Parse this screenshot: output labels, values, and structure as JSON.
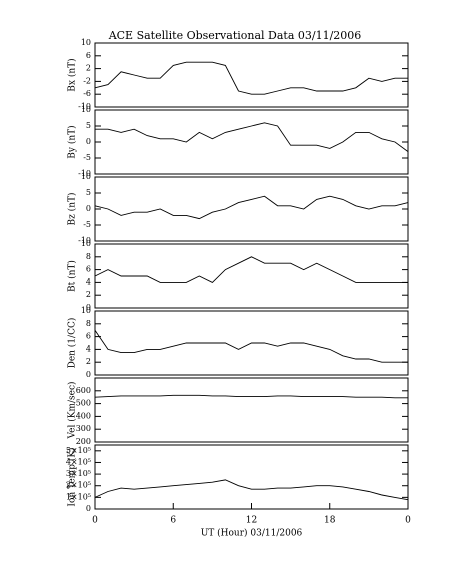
{
  "chart_data": [
    {
      "type": "line",
      "title": "ACE Satellite Observational Data   03/11/2006",
      "ylabel": "Bx (nT)",
      "x": [
        0,
        1,
        2,
        3,
        4,
        5,
        6,
        7,
        8,
        9,
        10,
        11,
        12,
        13,
        14,
        15,
        16,
        17,
        18,
        19,
        20,
        21,
        22,
        23,
        24
      ],
      "values": [
        -4,
        -3,
        1,
        0,
        -1,
        -1,
        3,
        4,
        4,
        4,
        3,
        -5,
        -6,
        -6,
        -5,
        -4,
        -4,
        -5,
        -5,
        -5,
        -4,
        -1,
        -2,
        -1,
        -1
      ],
      "ylim": [
        -10,
        10
      ],
      "yticks": [
        -10,
        -6,
        -2,
        2,
        6,
        10
      ],
      "xlim": [
        0,
        24
      ]
    },
    {
      "type": "line",
      "ylabel": "By (nT)",
      "x": [
        0,
        1,
        2,
        3,
        4,
        5,
        6,
        7,
        8,
        9,
        10,
        11,
        12,
        13,
        14,
        15,
        16,
        17,
        18,
        19,
        20,
        21,
        22,
        23,
        24
      ],
      "values": [
        4,
        4,
        3,
        4,
        2,
        1,
        1,
        0,
        3,
        1,
        3,
        4,
        5,
        6,
        5,
        -1,
        -1,
        -1,
        -2,
        0,
        3,
        3,
        1,
        0,
        -3
      ],
      "ylim": [
        -10,
        10
      ],
      "yticks": [
        -10,
        -5,
        0,
        5,
        10
      ],
      "xlim": [
        0,
        24
      ]
    },
    {
      "type": "line",
      "ylabel": "Bz (nT)",
      "x": [
        0,
        1,
        2,
        3,
        4,
        5,
        6,
        7,
        8,
        9,
        10,
        11,
        12,
        13,
        14,
        15,
        16,
        17,
        18,
        19,
        20,
        21,
        22,
        23,
        24
      ],
      "values": [
        1,
        0,
        -2,
        -1,
        -1,
        0,
        -2,
        -2,
        -3,
        -1,
        0,
        2,
        3,
        4,
        1,
        1,
        0,
        3,
        4,
        3,
        1,
        0,
        1,
        1,
        2
      ],
      "ylim": [
        -10,
        10
      ],
      "yticks": [
        -10,
        -5,
        0,
        5,
        10
      ],
      "xlim": [
        0,
        24
      ]
    },
    {
      "type": "line",
      "ylabel": "Bt (nT)",
      "x": [
        0,
        1,
        2,
        3,
        4,
        5,
        6,
        7,
        8,
        9,
        10,
        11,
        12,
        13,
        14,
        15,
        16,
        17,
        18,
        19,
        20,
        21,
        22,
        23,
        24
      ],
      "values": [
        5,
        6,
        5,
        5,
        5,
        4,
        4,
        4,
        5,
        4,
        6,
        7,
        8,
        7,
        7,
        7,
        6,
        7,
        6,
        5,
        4,
        4,
        4,
        4,
        4
      ],
      "ylim": [
        0,
        10
      ],
      "yticks": [
        0,
        2,
        4,
        6,
        8,
        10
      ],
      "xlim": [
        0,
        24
      ]
    },
    {
      "type": "line",
      "ylabel": "Den (1/CC)",
      "x": [
        0,
        1,
        2,
        3,
        4,
        5,
        6,
        7,
        8,
        9,
        10,
        11,
        12,
        13,
        14,
        15,
        16,
        17,
        18,
        19,
        20,
        21,
        22,
        23,
        24
      ],
      "values": [
        7,
        4,
        3.5,
        3.5,
        4,
        4,
        4.5,
        5,
        5,
        5,
        5,
        4,
        5,
        5,
        4.5,
        5,
        5,
        4.5,
        4,
        3,
        2.5,
        2.5,
        2,
        2,
        2
      ],
      "ylim": [
        0,
        10
      ],
      "yticks": [
        0,
        2,
        4,
        6,
        8,
        10
      ],
      "xlim": [
        0,
        24
      ]
    },
    {
      "type": "line",
      "ylabel": "Vel (Km/sec)",
      "x": [
        0,
        1,
        2,
        3,
        4,
        5,
        6,
        7,
        8,
        9,
        10,
        11,
        12,
        13,
        14,
        15,
        16,
        17,
        18,
        19,
        20,
        21,
        22,
        23,
        24
      ],
      "values": [
        550,
        555,
        560,
        560,
        560,
        560,
        565,
        565,
        565,
        560,
        560,
        555,
        555,
        555,
        560,
        560,
        555,
        555,
        555,
        555,
        550,
        550,
        550,
        545,
        545
      ],
      "ylim": [
        200,
        700
      ],
      "yticks": [
        200,
        300,
        400,
        500,
        600
      ],
      "xlim": [
        0,
        24
      ]
    },
    {
      "type": "line",
      "ylabel": "Ion Temp (K)",
      "xlabel": "UT (Hour)   03/11/2006",
      "x": [
        0,
        1,
        2,
        3,
        4,
        5,
        6,
        7,
        8,
        9,
        10,
        11,
        12,
        13,
        14,
        15,
        16,
        17,
        18,
        19,
        20,
        21,
        22,
        23,
        24
      ],
      "values": [
        100000,
        150000,
        180000,
        170000,
        180000,
        190000,
        200000,
        210000,
        220000,
        230000,
        250000,
        200000,
        170000,
        170000,
        180000,
        180000,
        190000,
        200000,
        200000,
        190000,
        170000,
        150000,
        120000,
        100000,
        80000
      ],
      "ylim": [
        0,
        550000
      ],
      "yticks": [
        0,
        {
          "value": 100000,
          "label": "1×10⁵"
        },
        {
          "value": 200000,
          "label": "2×10⁵"
        },
        {
          "value": 300000,
          "label": "3×10⁵"
        },
        {
          "value": 400000,
          "label": "4×10⁵"
        },
        {
          "value": 500000,
          "label": "5×10⁵"
        }
      ],
      "xlim": [
        0,
        24
      ],
      "xticks": [
        0,
        6,
        12,
        18,
        {
          "value": 24,
          "label": "0"
        }
      ]
    }
  ]
}
